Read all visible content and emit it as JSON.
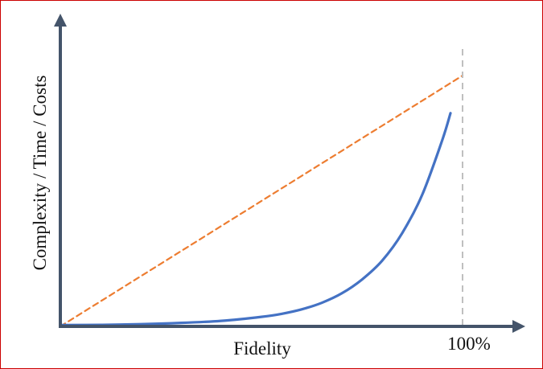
{
  "chart_data": {
    "type": "line",
    "title": "",
    "xlabel": "Fidelity",
    "ylabel": "Complexity / Time / Costs",
    "x_marker_label": "100%",
    "x_marker_value": 1.0,
    "xlim": [
      0,
      1.02
    ],
    "ylim": [
      0,
      1.05
    ],
    "grid": false,
    "legend": "none",
    "series": [
      {
        "style": "solid",
        "color": "#4472c4",
        "x": [
          0.0,
          0.1,
          0.2,
          0.3,
          0.4,
          0.5,
          0.55,
          0.6,
          0.65,
          0.7,
          0.75,
          0.8,
          0.85,
          0.9,
          0.95,
          0.97
        ],
        "y": [
          0.005,
          0.006,
          0.009,
          0.014,
          0.022,
          0.038,
          0.05,
          0.068,
          0.094,
          0.132,
          0.187,
          0.262,
          0.372,
          0.526,
          0.745,
          0.85
        ]
      },
      {
        "style": "dashed",
        "color": "#ed7d31",
        "x": [
          0.0,
          1.0
        ],
        "y": [
          0.0,
          1.0
        ]
      }
    ],
    "colors": {
      "axis": "#44546a",
      "marker": "#bfbfbf"
    }
  }
}
